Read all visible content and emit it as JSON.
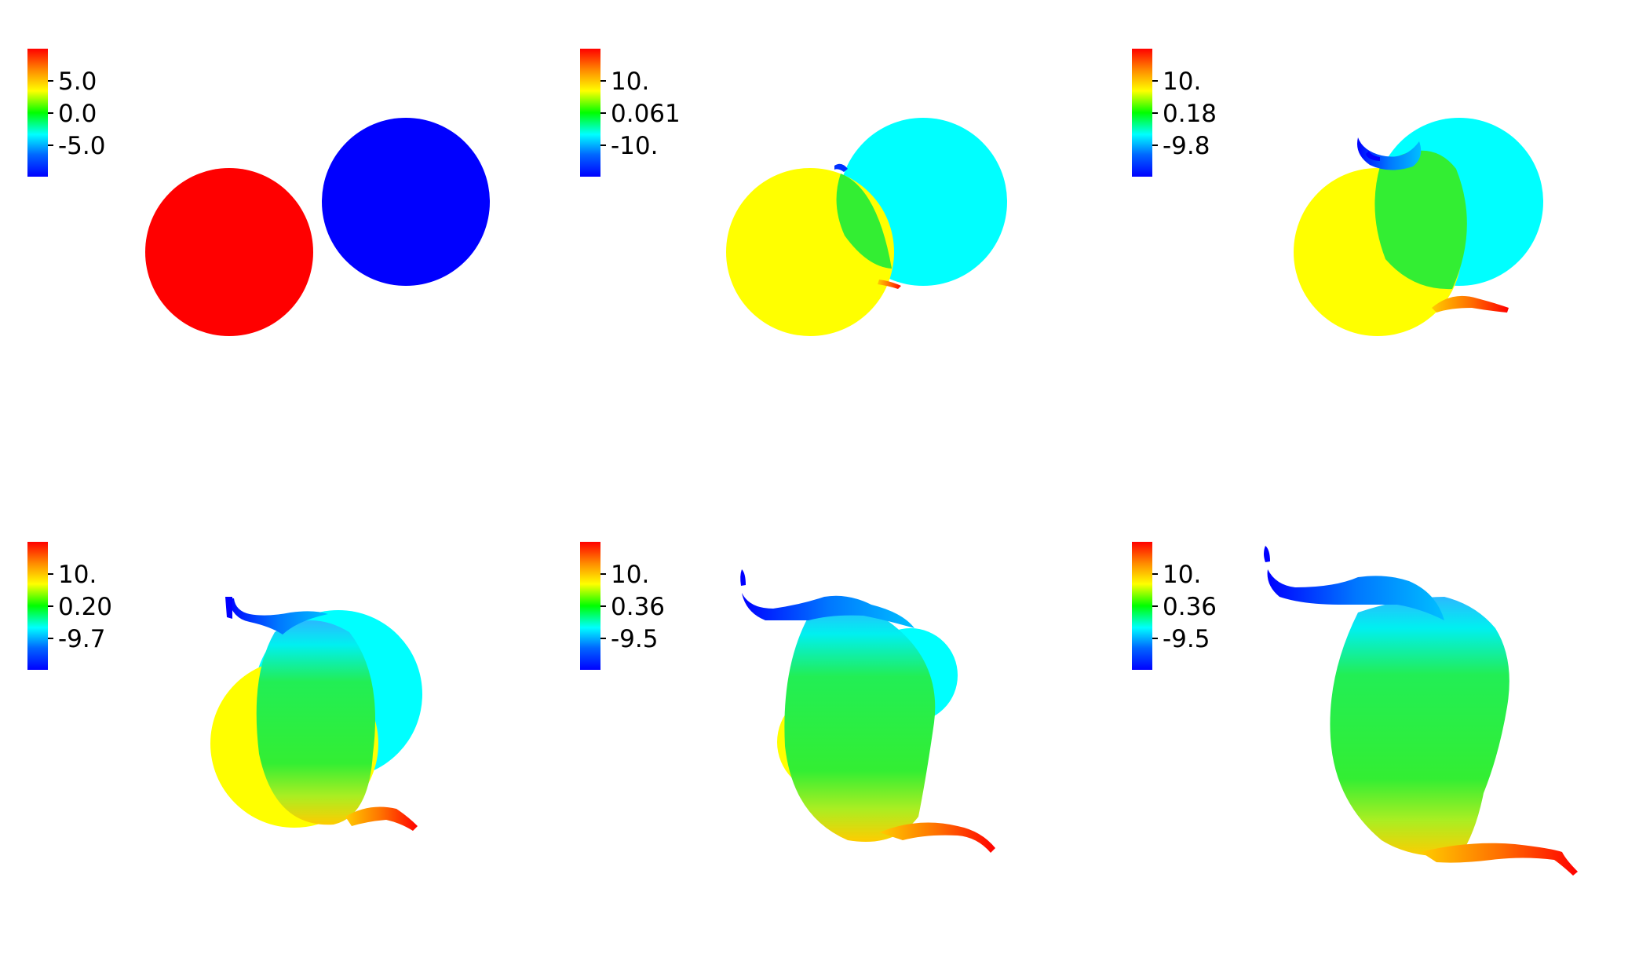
{
  "colormap": {
    "name": "rainbow",
    "stops": [
      "#ff0000",
      "#ff8c00",
      "#ffff00",
      "#00ff00",
      "#00ffff",
      "#0066ff",
      "#0000ff"
    ]
  },
  "panels": [
    {
      "stage": "initial-two-discs",
      "labels": [
        "5.0",
        "0.0",
        "-5.0"
      ],
      "colors": {
        "left_disc": "#ff0000",
        "right_disc": "#0000ff"
      }
    },
    {
      "stage": "contact",
      "labels": [
        "10.",
        "0.061",
        "-10."
      ],
      "colors": {
        "left_disc": "#ffff00",
        "right_disc": "#00ffff",
        "mix_zone": "#33ee33"
      }
    },
    {
      "stage": "early-mixing",
      "labels": [
        "10.",
        "0.18",
        "-9.8"
      ],
      "colors": {
        "left_disc": "#ffff00",
        "right_disc": "#00ffff",
        "mix_zone": "#33ee33"
      }
    },
    {
      "stage": "mid-mixing",
      "labels": [
        "10.",
        "0.20",
        "-9.7"
      ],
      "colors": {
        "left_disc": "#ffff00",
        "right_disc": "#00ffff",
        "mix_zone": "#33ee33"
      }
    },
    {
      "stage": "late-mixing",
      "labels": [
        "10.",
        "0.36",
        "-9.5"
      ],
      "colors": {
        "left_disc": "#ffff00",
        "right_disc": "#00ffff",
        "mix_zone": "#33ee33"
      }
    },
    {
      "stage": "merged-s-shape",
      "labels": [
        "10.",
        "0.36",
        "-9.5"
      ],
      "colors": {
        "left_disc": "#44ee44",
        "right_disc": "#44ee44",
        "mix_zone": "#33ee33"
      }
    }
  ]
}
